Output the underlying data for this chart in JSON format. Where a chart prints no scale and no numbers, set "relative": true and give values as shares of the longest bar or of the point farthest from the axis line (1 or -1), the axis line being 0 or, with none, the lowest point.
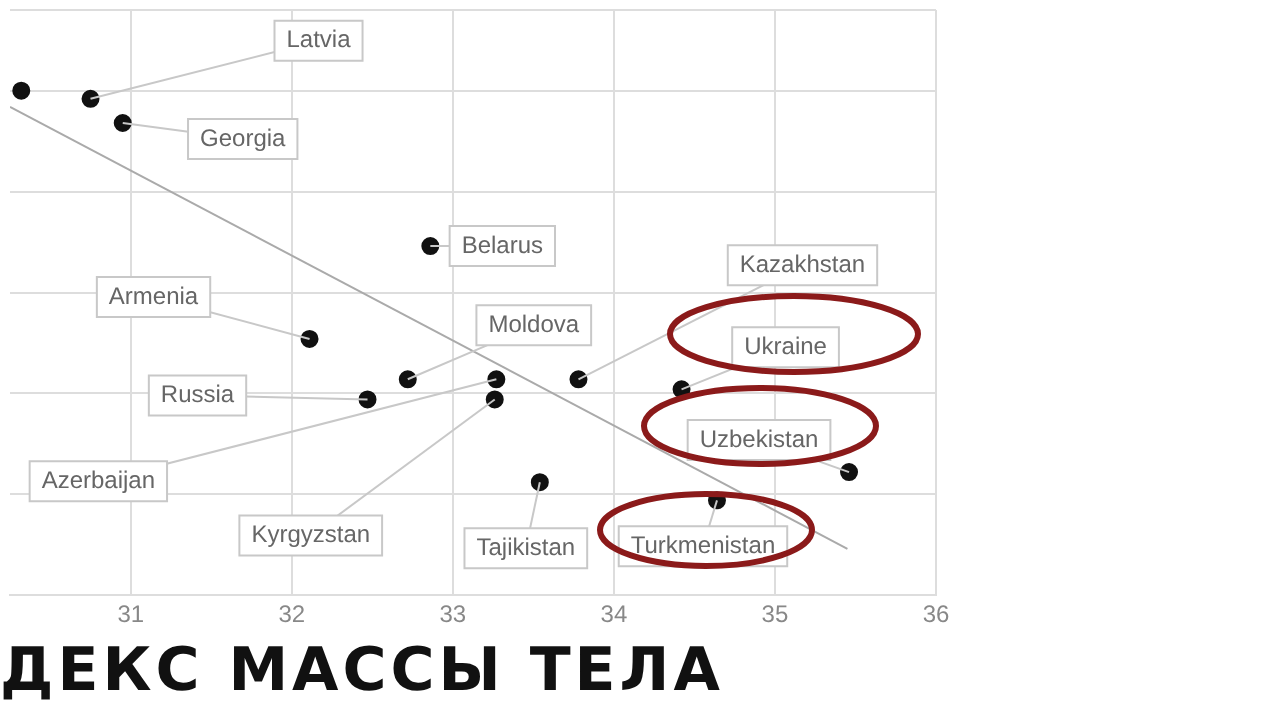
{
  "chart_data": {
    "type": "scatter",
    "relative": true,
    "xlabel": "ДЕКС МАССЫ ТЕЛА",
    "xlim": [
      30.25,
      36
    ],
    "xticks": [
      31,
      32,
      33,
      34,
      35,
      36
    ],
    "grid": true,
    "series": [
      {
        "color": "#111111",
        "marker": "circle",
        "x": [
          30.32,
          30.75,
          30.95,
          32.86,
          32.11,
          32.72,
          32.47,
          33.27,
          33.26,
          33.54,
          33.78,
          34.42,
          35.46,
          34.64
        ],
        "values": [
          1,
          0.984,
          0.936,
          0.692,
          0.508,
          0.428,
          0.388,
          0.428,
          0.388,
          0.224,
          0.428,
          0.408,
          0.244,
          0.188
        ]
      },
      {
        "type": "line",
        "color": "#aaaaaa",
        "marker": "none",
        "x": [
          30.25,
          35.45
        ],
        "values": [
          0.968,
          0.092
        ]
      }
    ],
    "annotations": [
      {
        "text": "Latvia",
        "x": 30.75,
        "y": 0.984
      },
      {
        "text": "Georgia",
        "x": 30.95,
        "y": 0.936
      },
      {
        "text": "Belarus",
        "x": 32.86,
        "y": 0.692
      },
      {
        "text": "Armenia",
        "x": 32.11,
        "y": 0.508
      },
      {
        "text": "Moldova",
        "x": 32.72,
        "y": 0.428
      },
      {
        "text": "Russia",
        "x": 32.47,
        "y": 0.388
      },
      {
        "text": "Azerbaijan",
        "x": 33.27,
        "y": 0.428
      },
      {
        "text": "Kyrgyzstan",
        "x": 33.26,
        "y": 0.388
      },
      {
        "text": "Tajikistan",
        "x": 33.54,
        "y": 0.224
      },
      {
        "text": "Kazakhstan",
        "x": 33.78,
        "y": 0.428
      },
      {
        "text": "Ukraine",
        "x": 34.42,
        "y": 0.408
      },
      {
        "text": "Uzbekistan",
        "x": 35.46,
        "y": 0.244
      },
      {
        "text": "Turkmenistan",
        "x": 34.64,
        "y": 0.188
      }
    ]
  }
}
